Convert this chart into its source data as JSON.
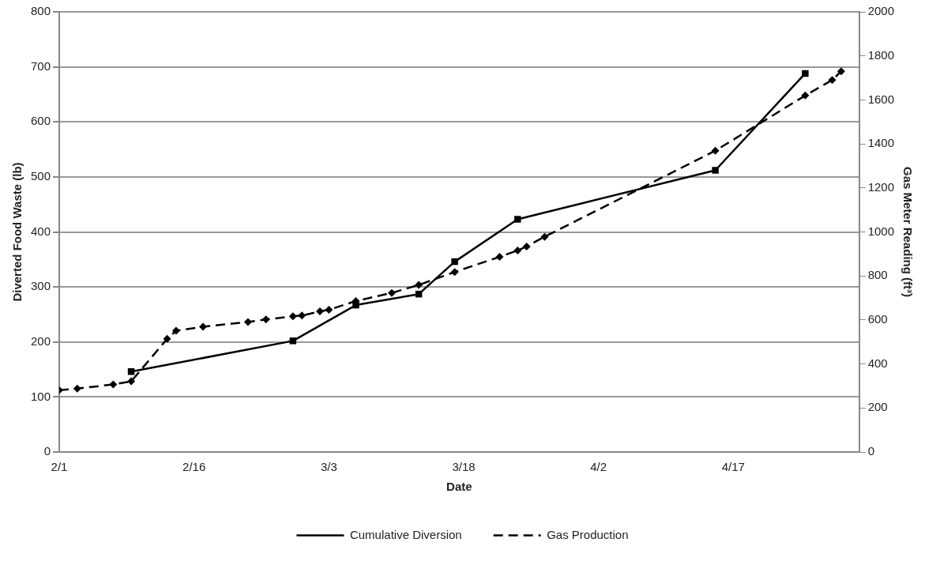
{
  "chart_data": {
    "type": "line",
    "xlabel": "Date",
    "ylabel": "Diverted Food Waste (lb)",
    "y2label": "Gas Meter Reading (ft³)",
    "xlim": [
      "--02-01",
      "--05-01"
    ],
    "xticks": [
      {
        "value": "--02-01",
        "label": "2/1"
      },
      {
        "value": "--02-16",
        "label": "2/16"
      },
      {
        "value": "--03-03",
        "label": "3/3"
      },
      {
        "value": "--03-18",
        "label": "3/18"
      },
      {
        "value": "--04-02",
        "label": "4/2"
      },
      {
        "value": "--04-17",
        "label": "4/17"
      }
    ],
    "ylim": [
      0,
      800
    ],
    "yticks": [
      0,
      100,
      200,
      300,
      400,
      500,
      600,
      700,
      800
    ],
    "y2lim": [
      0,
      2000
    ],
    "y2ticks": [
      0,
      200,
      400,
      600,
      800,
      1000,
      1200,
      1400,
      1600,
      1800,
      2000
    ],
    "grid": "y",
    "legend": "bottom",
    "series": [
      {
        "name": "Cumulative Diversion",
        "color": "#000000",
        "marker": "square",
        "line_style": "solid",
        "x": [
          "--02-09",
          "--02-27",
          "--03-06",
          "--03-13",
          "--03-17",
          "--03-24",
          "--04-15",
          "--04-25"
        ],
        "values": [
          146,
          202,
          267,
          287,
          346,
          423,
          512,
          688
        ]
      },
      {
        "name": "Gas Production",
        "color": "#000000",
        "marker": "diamond",
        "line_style": "dashed",
        "axis": "y2",
        "x": [
          "--02-01",
          "--02-03",
          "--02-07",
          "--02-09",
          "--02-13",
          "--02-14",
          "--02-17",
          "--02-22",
          "--02-24",
          "--02-27",
          "--02-28",
          "--03-02",
          "--03-03",
          "--03-06",
          "--03-10",
          "--03-13",
          "--03-17",
          "--03-22",
          "--03-24",
          "--03-25",
          "--03-27",
          "--04-15",
          "--04-25",
          "--04-28",
          "--04-29"
        ],
        "values": [
          281,
          288,
          307,
          321,
          514,
          551,
          569,
          591,
          602,
          617,
          620,
          639,
          646,
          686,
          723,
          759,
          818,
          887,
          916,
          934,
          978,
          1369,
          1620,
          1690,
          1730
        ]
      }
    ]
  }
}
